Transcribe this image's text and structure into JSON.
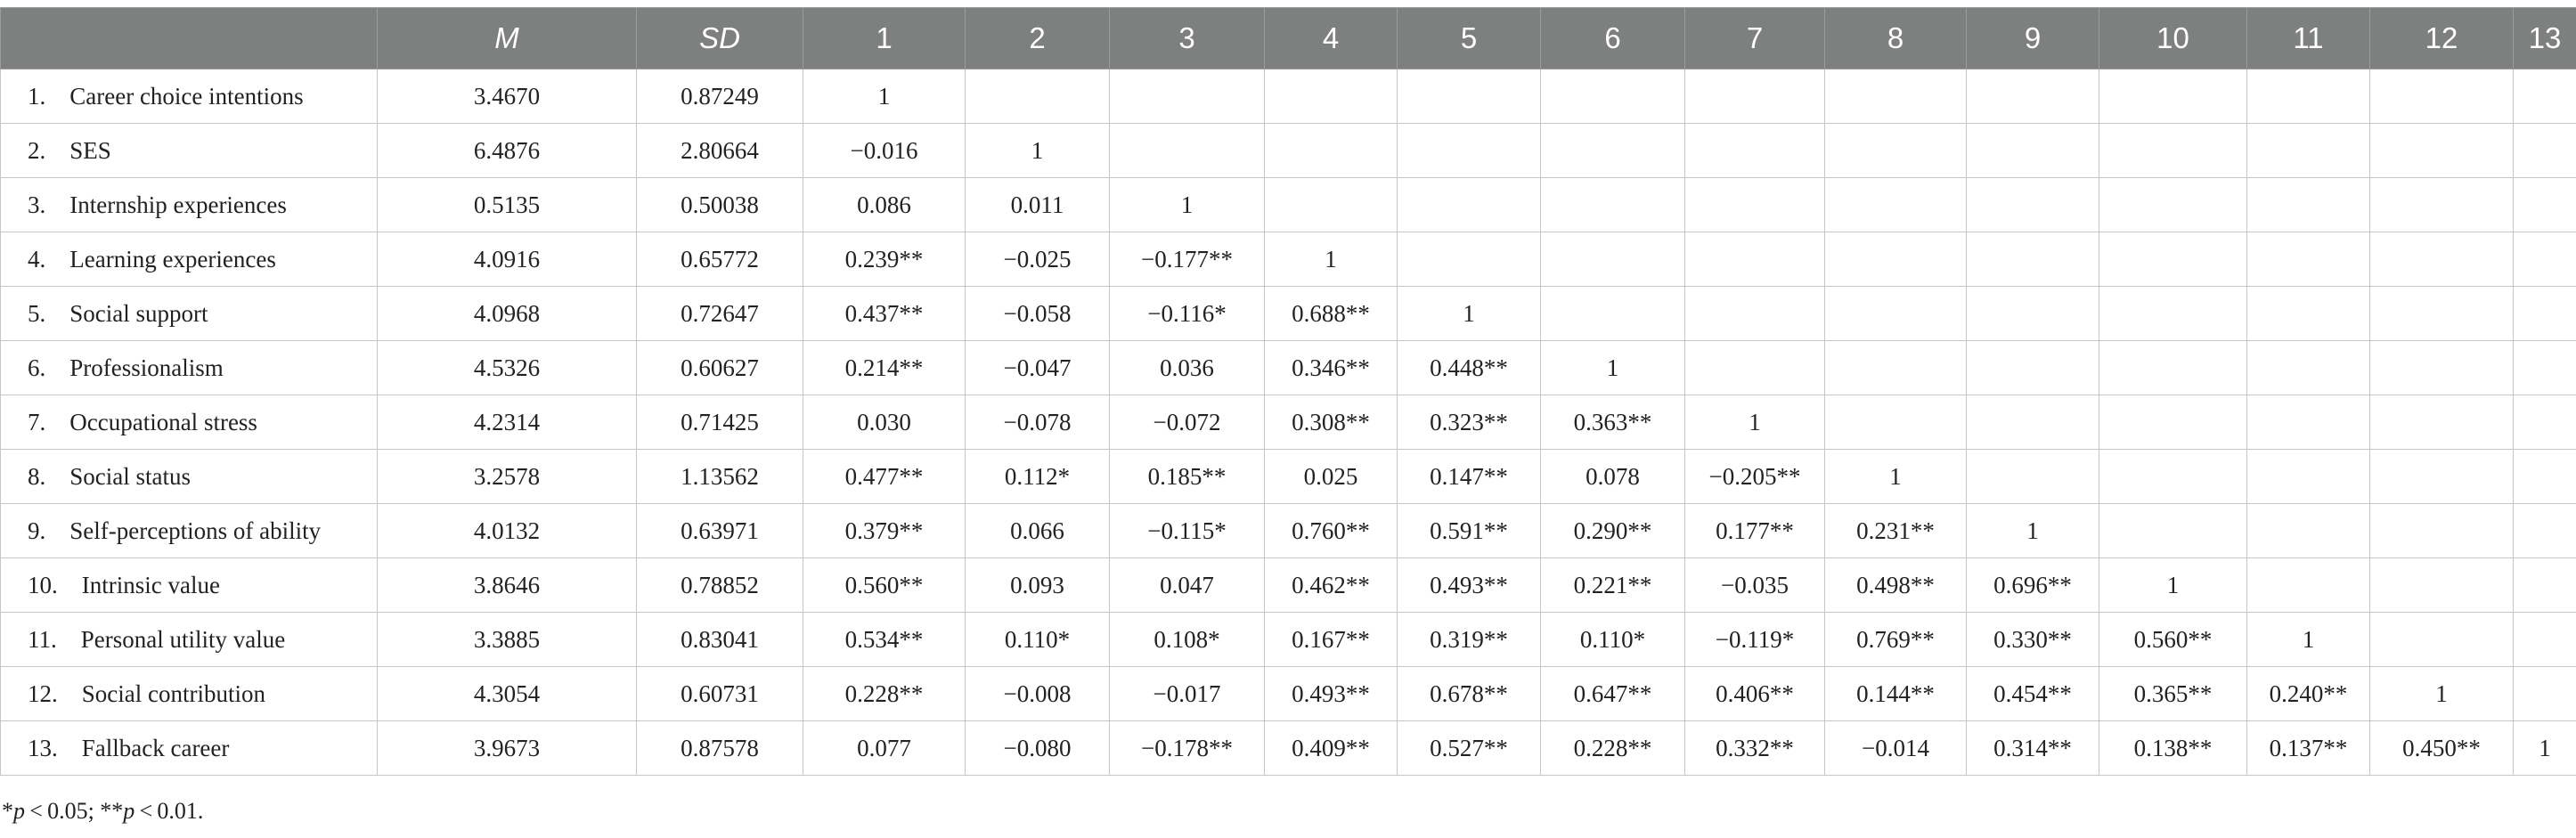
{
  "table": {
    "headers": [
      "",
      "M",
      "SD",
      "1",
      "2",
      "3",
      "4",
      "5",
      "6",
      "7",
      "8",
      "9",
      "10",
      "11",
      "12",
      "13"
    ],
    "rows": [
      {
        "label": "1. Career choice intentions",
        "m": "3.4670",
        "sd": "0.87249",
        "cells": [
          "1",
          "",
          "",
          "",
          "",
          "",
          "",
          "",
          "",
          "",
          "",
          "",
          ""
        ]
      },
      {
        "label": "2. SES",
        "m": "6.4876",
        "sd": "2.80664",
        "cells": [
          "−0.016",
          "1",
          "",
          "",
          "",
          "",
          "",
          "",
          "",
          "",
          "",
          "",
          ""
        ]
      },
      {
        "label": "3. Internship experiences",
        "m": "0.5135",
        "sd": "0.50038",
        "cells": [
          "0.086",
          "0.011",
          "1",
          "",
          "",
          "",
          "",
          "",
          "",
          "",
          "",
          "",
          ""
        ]
      },
      {
        "label": "4. Learning experiences",
        "m": "4.0916",
        "sd": "0.65772",
        "cells": [
          "0.239**",
          "−0.025",
          "−0.177**",
          "1",
          "",
          "",
          "",
          "",
          "",
          "",
          "",
          "",
          ""
        ]
      },
      {
        "label": "5. Social support",
        "m": "4.0968",
        "sd": "0.72647",
        "cells": [
          "0.437**",
          "−0.058",
          "−0.116*",
          "0.688**",
          "1",
          "",
          "",
          "",
          "",
          "",
          "",
          "",
          ""
        ]
      },
      {
        "label": "6. Professionalism",
        "m": "4.5326",
        "sd": "0.60627",
        "cells": [
          "0.214**",
          "−0.047",
          "0.036",
          "0.346**",
          "0.448**",
          "1",
          "",
          "",
          "",
          "",
          "",
          "",
          ""
        ]
      },
      {
        "label": "7. Occupational stress",
        "m": "4.2314",
        "sd": "0.71425",
        "cells": [
          "0.030",
          "−0.078",
          "−0.072",
          "0.308**",
          "0.323**",
          "0.363**",
          "1",
          "",
          "",
          "",
          "",
          "",
          ""
        ]
      },
      {
        "label": "8. Social status",
        "m": "3.2578",
        "sd": "1.13562",
        "cells": [
          "0.477**",
          "0.112*",
          "0.185**",
          "0.025",
          "0.147**",
          "0.078",
          "−0.205**",
          "1",
          "",
          "",
          "",
          "",
          ""
        ]
      },
      {
        "label": "9. Self-perceptions of ability",
        "m": "4.0132",
        "sd": "0.63971",
        "cells": [
          "0.379**",
          "0.066",
          "−0.115*",
          "0.760**",
          "0.591**",
          "0.290**",
          "0.177**",
          "0.231**",
          "1",
          "",
          "",
          "",
          ""
        ]
      },
      {
        "label": "10. Intrinsic value",
        "m": "3.8646",
        "sd": "0.78852",
        "cells": [
          "0.560**",
          "0.093",
          "0.047",
          "0.462**",
          "0.493**",
          "0.221**",
          "−0.035",
          "0.498**",
          "0.696**",
          "1",
          "",
          "",
          ""
        ]
      },
      {
        "label": "11. Personal utility value",
        "m": "3.3885",
        "sd": "0.83041",
        "cells": [
          "0.534**",
          "0.110*",
          "0.108*",
          "0.167**",
          "0.319**",
          "0.110*",
          "−0.119*",
          "0.769**",
          "0.330**",
          "0.560**",
          "1",
          "",
          ""
        ]
      },
      {
        "label": "12. Social contribution",
        "m": "4.3054",
        "sd": "0.60731",
        "cells": [
          "0.228**",
          "−0.008",
          "−0.017",
          "0.493**",
          "0.678**",
          "0.647**",
          "0.406**",
          "0.144**",
          "0.454**",
          "0.365**",
          "0.240**",
          "1",
          ""
        ]
      },
      {
        "label": "13. Fallback career",
        "m": "3.9673",
        "sd": "0.87578",
        "cells": [
          "0.077",
          "−0.080",
          "−0.178**",
          "0.409**",
          "0.527**",
          "0.228**",
          "0.332**",
          "−0.014",
          "0.314**",
          "0.138**",
          "0.137**",
          "0.450**",
          "1"
        ]
      }
    ]
  },
  "footnote": {
    "p1_symbol": "*",
    "p1_var": "p",
    "p1_text": " < 0.05; ",
    "p2_symbol": "**",
    "p2_var": "p",
    "p2_text": " < 0.01."
  }
}
